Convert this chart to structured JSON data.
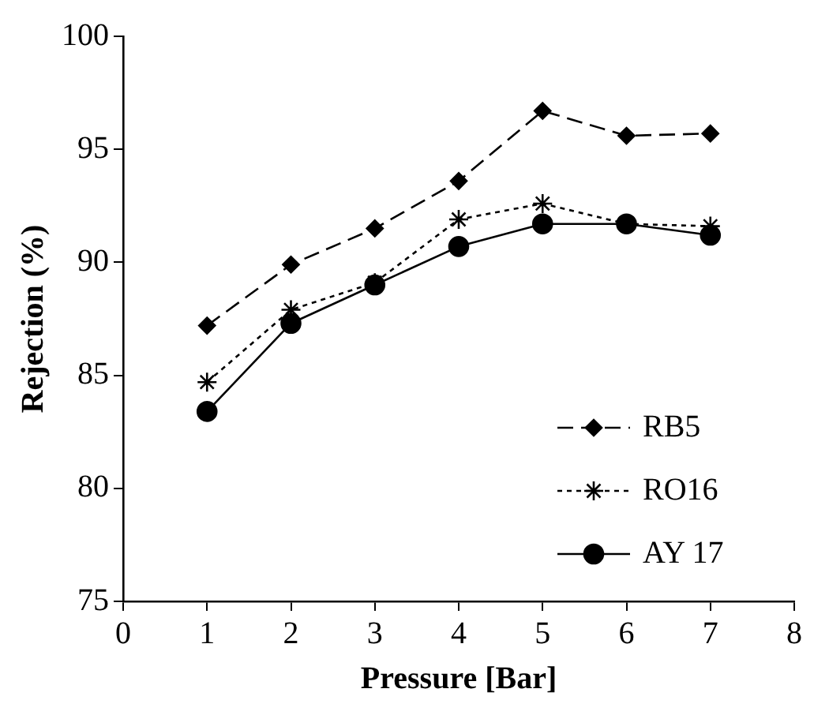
{
  "chart_data": {
    "type": "line",
    "xlabel": "Pressure [Bar]",
    "ylabel": "Rejection (%)",
    "x": [
      1,
      2,
      3,
      4,
      5,
      6,
      7
    ],
    "xlim": [
      0,
      8
    ],
    "xticks": [
      0,
      1,
      2,
      3,
      4,
      5,
      6,
      7,
      8
    ],
    "ylim": [
      75,
      100
    ],
    "yticks": [
      75,
      80,
      85,
      90,
      95,
      100
    ],
    "grid": false,
    "legend": "bottom right",
    "series": [
      {
        "name": "RB5",
        "color": "#000000",
        "marker": "diamond",
        "line_style": "dashed",
        "values": [
          87.2,
          89.9,
          91.5,
          93.6,
          96.7,
          95.6,
          95.7
        ]
      },
      {
        "name": "RO16",
        "color": "#000000",
        "marker": "cross",
        "line_style": "dotted",
        "values": [
          84.7,
          87.9,
          89.1,
          91.9,
          92.6,
          91.7,
          91.6
        ]
      },
      {
        "name": "AY 17",
        "color": "#000000",
        "marker": "circle",
        "line_style": "solid",
        "values": [
          83.4,
          87.3,
          89.0,
          90.7,
          91.7,
          91.7,
          91.2
        ]
      }
    ]
  }
}
